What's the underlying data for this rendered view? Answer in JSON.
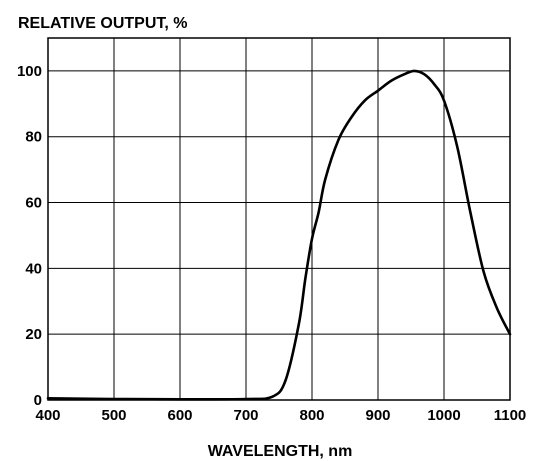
{
  "chart_data": {
    "type": "line",
    "title": "",
    "ylabel": "RELATIVE OUTPUT, %",
    "xlabel": "WAVELENGTH, nm",
    "xlim": [
      400,
      1100
    ],
    "ylim": [
      0,
      110
    ],
    "xticks": [
      400,
      500,
      600,
      700,
      800,
      900,
      1000,
      1100
    ],
    "yticks": [
      0,
      20,
      40,
      60,
      80,
      100
    ],
    "grid": true,
    "series": [
      {
        "x": [
          400,
          500,
          600,
          700,
          740,
          760,
          780,
          790,
          800,
          810,
          820,
          840,
          860,
          880,
          900,
          920,
          940,
          955,
          970,
          985,
          1000,
          1020,
          1040,
          1060,
          1080,
          1100
        ],
        "y": [
          0.5,
          0.3,
          0.2,
          0.3,
          1.0,
          6.0,
          23.0,
          37.0,
          49.0,
          57.0,
          67.0,
          79.0,
          86.0,
          91.0,
          94.0,
          97.0,
          99.0,
          100.0,
          99.0,
          96.0,
          91.0,
          77.0,
          57.0,
          39.0,
          28.0,
          20.0
        ]
      }
    ]
  },
  "colors": {
    "line": "#000000",
    "grid": "#000000",
    "background": "#ffffff"
  }
}
